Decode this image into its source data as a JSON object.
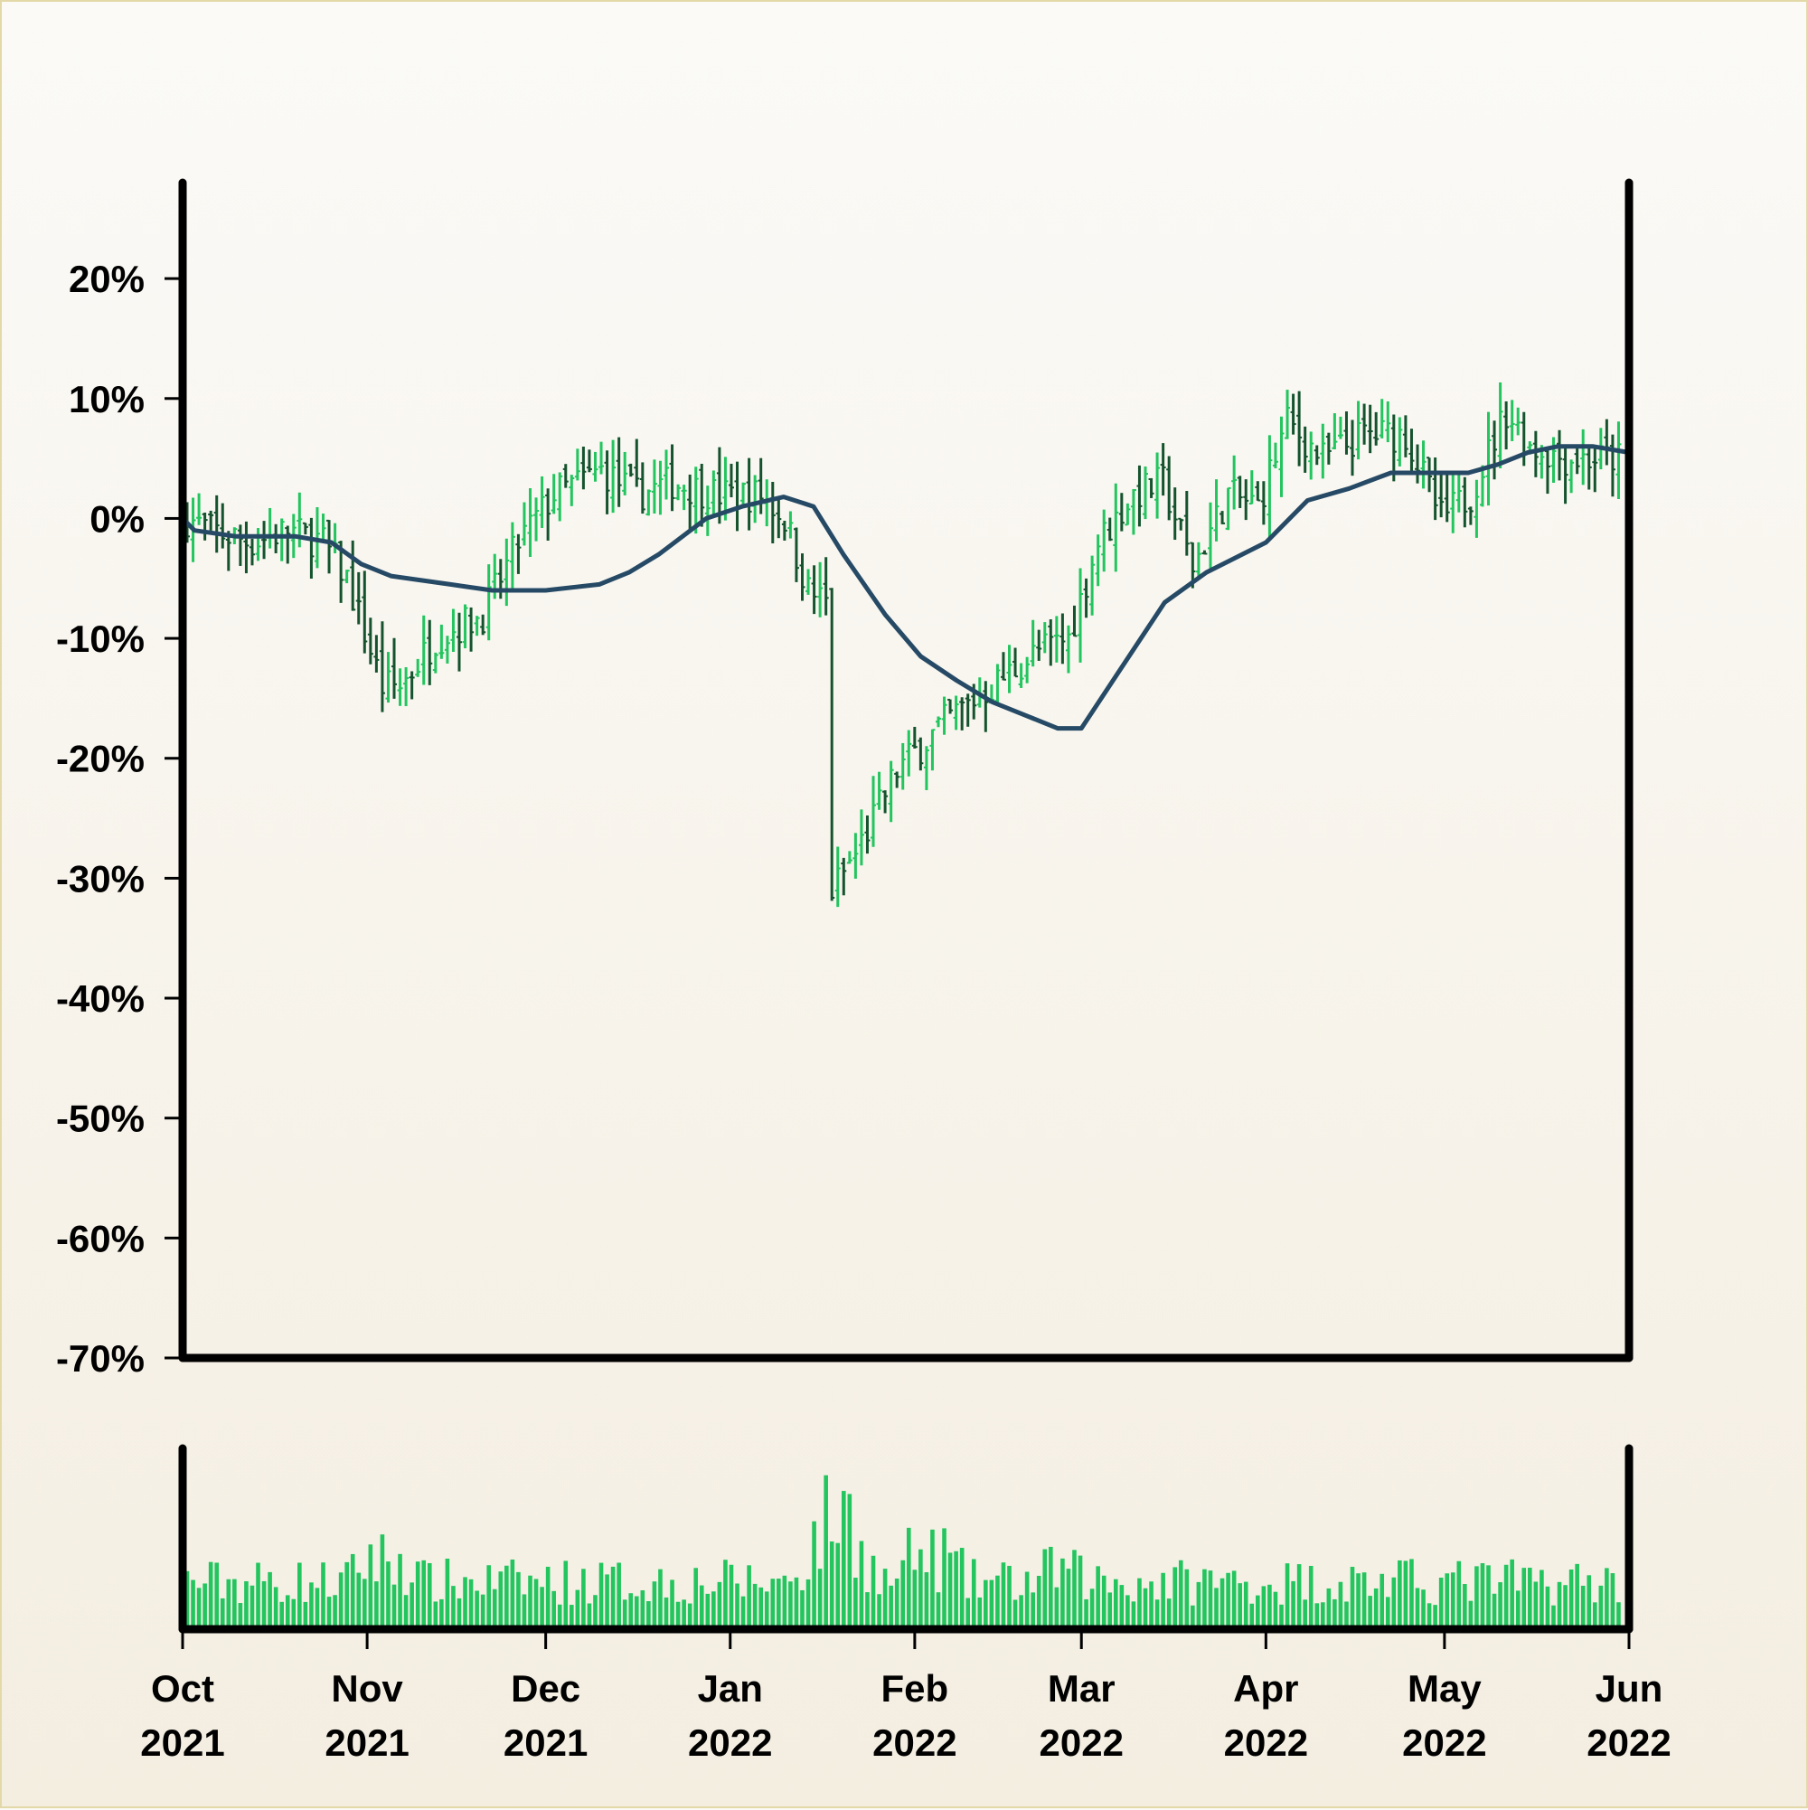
{
  "chart_data": {
    "type": "ohlc",
    "title": "",
    "xlabel": "",
    "ylabel": "",
    "y_format": "percent",
    "ylim": [
      -70,
      28
    ],
    "yticks": [
      20,
      10,
      0,
      -10,
      -20,
      -30,
      -40,
      -50,
      -60,
      -70
    ],
    "ytick_labels": [
      "20%",
      "10%",
      "0%",
      "-10%",
      "-20%",
      "-30%",
      "-40%",
      "-50%",
      "-60%",
      "-70%"
    ],
    "x_start": "2021-10-01",
    "x_end": "2022-06-01",
    "xticks": [
      {
        "date": "2021-10-01",
        "month": "Oct",
        "year": "2021"
      },
      {
        "date": "2021-11-01",
        "month": "Nov",
        "year": "2021"
      },
      {
        "date": "2021-12-01",
        "month": "Dec",
        "year": "2021"
      },
      {
        "date": "2022-01-01",
        "month": "Jan",
        "year": "2022"
      },
      {
        "date": "2022-02-01",
        "month": "Feb",
        "year": "2022"
      },
      {
        "date": "2022-03-01",
        "month": "Mar",
        "year": "2022"
      },
      {
        "date": "2022-04-01",
        "month": "Apr",
        "year": "2022"
      },
      {
        "date": "2022-05-01",
        "month": "May",
        "year": "2022"
      },
      {
        "date": "2022-06-01",
        "month": "Jun",
        "year": "2022"
      }
    ],
    "price_anchors": [
      [
        "2021-10-01",
        0
      ],
      [
        "2021-10-05",
        -1
      ],
      [
        "2021-10-12",
        -2
      ],
      [
        "2021-10-18",
        -1
      ],
      [
        "2021-10-24",
        -2
      ],
      [
        "2021-10-28",
        -5
      ],
      [
        "2021-11-03",
        -14
      ],
      [
        "2021-11-06",
        -14
      ],
      [
        "2021-11-12",
        -10
      ],
      [
        "2021-11-20",
        -8
      ],
      [
        "2021-11-26",
        -2
      ],
      [
        "2021-12-02",
        2
      ],
      [
        "2021-12-10",
        4
      ],
      [
        "2021-12-16",
        2
      ],
      [
        "2021-12-22",
        3
      ],
      [
        "2021-12-30",
        2
      ],
      [
        "2022-01-06",
        2
      ],
      [
        "2022-01-10",
        0
      ],
      [
        "2022-01-14",
        -6
      ],
      [
        "2022-01-17",
        -7
      ],
      [
        "2022-01-18",
        -31
      ],
      [
        "2022-01-22",
        -28
      ],
      [
        "2022-01-29",
        -21
      ],
      [
        "2022-02-06",
        -17
      ],
      [
        "2022-02-14",
        -14
      ],
      [
        "2022-02-22",
        -11
      ],
      [
        "2022-02-27",
        -10
      ],
      [
        "2022-03-04",
        -2
      ],
      [
        "2022-03-10",
        2
      ],
      [
        "2022-03-15",
        3
      ],
      [
        "2022-03-20",
        -4
      ],
      [
        "2022-03-26",
        2
      ],
      [
        "2022-03-31",
        1
      ],
      [
        "2022-04-05",
        8
      ],
      [
        "2022-04-11",
        5
      ],
      [
        "2022-04-18",
        7
      ],
      [
        "2022-04-25",
        7
      ],
      [
        "2022-05-01",
        0
      ],
      [
        "2022-05-06",
        2
      ],
      [
        "2022-05-12",
        9
      ],
      [
        "2022-05-16",
        6
      ],
      [
        "2022-05-22",
        5
      ],
      [
        "2022-06-01",
        5
      ]
    ],
    "moving_average": [
      [
        "2021-10-01",
        0
      ],
      [
        "2021-10-03",
        -1
      ],
      [
        "2021-10-10",
        -1.5
      ],
      [
        "2021-10-20",
        -1.5
      ],
      [
        "2021-10-26",
        -2
      ],
      [
        "2021-10-31",
        -3.8
      ],
      [
        "2021-11-05",
        -4.8
      ],
      [
        "2021-11-15",
        -5.5
      ],
      [
        "2021-11-22",
        -6
      ],
      [
        "2021-12-01",
        -6
      ],
      [
        "2021-12-10",
        -5.5
      ],
      [
        "2021-12-15",
        -4.5
      ],
      [
        "2021-12-20",
        -3
      ],
      [
        "2021-12-28",
        0
      ],
      [
        "2022-01-03",
        1
      ],
      [
        "2022-01-10",
        1.8
      ],
      [
        "2022-01-15",
        1
      ],
      [
        "2022-01-20",
        -3
      ],
      [
        "2022-01-27",
        -8
      ],
      [
        "2022-02-02",
        -11.5
      ],
      [
        "2022-02-08",
        -13.5
      ],
      [
        "2022-02-14",
        -15.3
      ],
      [
        "2022-02-20",
        -16.5
      ],
      [
        "2022-02-25",
        -17.5
      ],
      [
        "2022-03-01",
        -17.5
      ],
      [
        "2022-03-07",
        -13
      ],
      [
        "2022-03-15",
        -7
      ],
      [
        "2022-03-22",
        -4.5
      ],
      [
        "2022-04-01",
        -2
      ],
      [
        "2022-04-08",
        1.5
      ],
      [
        "2022-04-15",
        2.5
      ],
      [
        "2022-04-22",
        3.8
      ],
      [
        "2022-04-28",
        3.8
      ],
      [
        "2022-05-05",
        3.8
      ],
      [
        "2022-05-10",
        4.5
      ],
      [
        "2022-05-15",
        5.5
      ],
      [
        "2022-05-20",
        6
      ],
      [
        "2022-05-26",
        6
      ],
      [
        "2022-06-01",
        5.5
      ]
    ],
    "volume_spikes": [
      [
        "2021-11-01",
        1.6
      ],
      [
        "2021-11-06",
        1.5
      ],
      [
        "2022-01-14",
        1.5
      ],
      [
        "2022-01-18",
        2.3
      ],
      [
        "2022-01-22",
        2.0
      ],
      [
        "2022-02-01",
        1.6
      ],
      [
        "2022-02-06",
        1.6
      ],
      [
        "2022-02-25",
        1.3
      ],
      [
        "2022-03-01",
        1.1
      ]
    ],
    "colors": {
      "up": "#22c55e",
      "down": "#14532d",
      "moving_average": "#264a66",
      "volume": "#22c55e",
      "axis": "#000000"
    },
    "series": [
      {
        "name": "",
        "kind": "ohlc"
      },
      {
        "name": "",
        "kind": "moving-average"
      },
      {
        "name": "",
        "kind": "volume"
      }
    ]
  }
}
